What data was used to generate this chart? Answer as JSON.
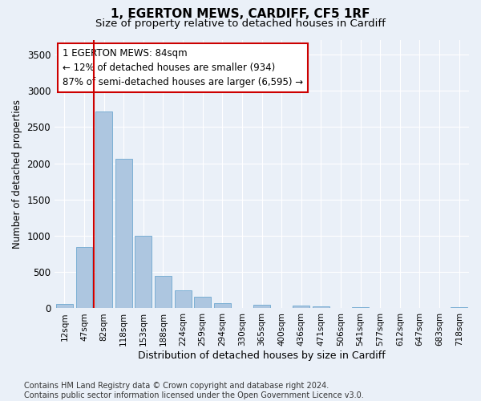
{
  "title1": "1, EGERTON MEWS, CARDIFF, CF5 1RF",
  "title2": "Size of property relative to detached houses in Cardiff",
  "xlabel": "Distribution of detached houses by size in Cardiff",
  "ylabel": "Number of detached properties",
  "categories": [
    "12sqm",
    "47sqm",
    "82sqm",
    "118sqm",
    "153sqm",
    "188sqm",
    "224sqm",
    "259sqm",
    "294sqm",
    "330sqm",
    "365sqm",
    "400sqm",
    "436sqm",
    "471sqm",
    "506sqm",
    "541sqm",
    "577sqm",
    "612sqm",
    "647sqm",
    "683sqm",
    "718sqm"
  ],
  "values": [
    60,
    850,
    2720,
    2060,
    1000,
    450,
    250,
    155,
    70,
    5,
    50,
    5,
    40,
    30,
    5,
    20,
    5,
    5,
    5,
    5,
    20
  ],
  "bar_color": "#adc6e0",
  "bar_edge_color": "#7bafd4",
  "vline_x": 1.5,
  "vline_color": "#cc0000",
  "annotation_text": "1 EGERTON MEWS: 84sqm\n← 12% of detached houses are smaller (934)\n87% of semi-detached houses are larger (6,595) →",
  "annotation_box_color": "#ffffff",
  "annotation_box_edgecolor": "#cc0000",
  "ylim": [
    0,
    3700
  ],
  "yticks": [
    0,
    500,
    1000,
    1500,
    2000,
    2500,
    3000,
    3500
  ],
  "bg_color": "#eaf0f8",
  "footnote": "Contains HM Land Registry data © Crown copyright and database right 2024.\nContains public sector information licensed under the Open Government Licence v3.0.",
  "title1_fontsize": 11,
  "title2_fontsize": 9.5,
  "annotation_fontsize": 8.5,
  "footnote_fontsize": 7
}
